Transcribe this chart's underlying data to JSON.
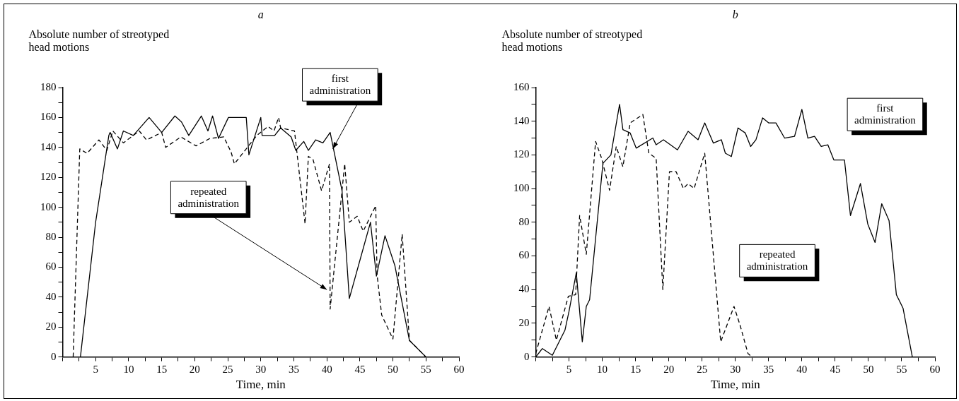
{
  "chart_data": [
    {
      "type": "line",
      "title": "a",
      "ylabel": "Absolute number of streotyped head motions",
      "xlabel": "Time, min",
      "xlim": [
        0,
        60
      ],
      "ylim": [
        0,
        180
      ],
      "xticks": [
        {
          "value": 0,
          "label": null
        },
        {
          "value": 2.5,
          "label": null
        },
        5,
        {
          "value": 7.5,
          "label": null
        },
        10,
        {
          "value": 12.5,
          "label": null
        },
        15,
        {
          "value": 17.5,
          "label": null
        },
        20,
        {
          "value": 22.5,
          "label": null
        },
        25,
        {
          "value": 27.5,
          "label": null
        },
        30,
        {
          "value": 32.5,
          "label": null
        },
        35,
        {
          "value": 37.5,
          "label": null
        },
        40,
        {
          "value": 42.5,
          "label": null
        },
        45,
        {
          "value": 47.5,
          "label": null
        },
        50,
        {
          "value": 52.5,
          "label": null
        },
        55,
        {
          "value": 57.5,
          "label": null
        },
        60
      ],
      "yticks": [
        0,
        {
          "value": 10,
          "label": null
        },
        20,
        {
          "value": 30,
          "label": null
        },
        40,
        {
          "value": 50,
          "label": null
        },
        60,
        {
          "value": 70,
          "label": null
        },
        80,
        {
          "value": 90,
          "label": null
        },
        100,
        {
          "value": 110,
          "label": null
        },
        120,
        {
          "value": 130,
          "label": null
        },
        140,
        {
          "value": 150,
          "label": null
        },
        160,
        {
          "value": 170,
          "label": null
        },
        180
      ],
      "grid": false,
      "legend": false,
      "marker": "none",
      "series": [
        {
          "color": "#000000",
          "line_style": "solid",
          "x": [
            2.7,
            5,
            7,
            7.2,
            8.3,
            9.2,
            10.7,
            13.1,
            15,
            17,
            18,
            19.1,
            21,
            22,
            22.7,
            23.6,
            25.1,
            26,
            27.8,
            28.2,
            30,
            30.2,
            32.1,
            33,
            34.6,
            35.3,
            36.5,
            37.2,
            38.3,
            39.4,
            40.5,
            42.3,
            43.4,
            46.6,
            47.5,
            48.8,
            50.3,
            52.5,
            55
          ],
          "values": [
            0,
            90,
            148,
            150,
            139,
            151,
            148,
            160,
            150,
            161,
            157,
            148,
            161,
            151,
            161,
            146,
            160,
            160,
            160,
            135,
            160,
            148,
            148,
            153,
            147,
            138,
            144,
            138,
            145,
            143,
            150,
            111,
            39,
            90,
            54,
            81,
            61,
            11,
            0
          ]
        },
        {
          "color": "#000000",
          "line_style": "dashed",
          "x": [
            1.6,
            2.6,
            3.7,
            5.5,
            6.7,
            7.6,
            9.2,
            11.6,
            12.7,
            15,
            15.6,
            17.9,
            20.2,
            22.3,
            24.4,
            25.5,
            26,
            29.4,
            31.1,
            32,
            32.7,
            33,
            35.1,
            36.7,
            37.2,
            37.9,
            39.2,
            40.4,
            40.5,
            42.7,
            43.4,
            44.6,
            45.5,
            47.4,
            47.6,
            48.3,
            50,
            51.4,
            52.5,
            55
          ],
          "values": [
            0,
            139,
            136,
            145,
            138,
            151,
            143,
            151,
            145,
            150,
            140,
            147,
            141,
            146,
            147,
            137,
            129,
            148,
            154,
            151,
            160,
            153,
            151,
            89,
            134,
            132,
            111,
            129,
            32,
            129,
            90,
            94,
            84,
            101,
            55,
            28,
            12,
            82,
            11,
            0
          ]
        }
      ],
      "annotations": [
        {
          "text": "first administration",
          "x": 40.9,
          "y": 139
        },
        {
          "text": "repeated administration",
          "x": 40,
          "y": 45
        }
      ]
    },
    {
      "type": "line",
      "title": "b",
      "ylabel": "Absolute number of streotyped head motions",
      "xlabel": "Time, min",
      "xlim": [
        0,
        60
      ],
      "ylim": [
        0,
        160
      ],
      "xticks": [
        {
          "value": 0,
          "label": null
        },
        {
          "value": 2.5,
          "label": null
        },
        5,
        {
          "value": 7.5,
          "label": null
        },
        10,
        {
          "value": 12.5,
          "label": null
        },
        15,
        {
          "value": 17.5,
          "label": null
        },
        20,
        {
          "value": 22.5,
          "label": null
        },
        25,
        {
          "value": 27.5,
          "label": null
        },
        30,
        {
          "value": 32.5,
          "label": null
        },
        35,
        {
          "value": 37.5,
          "label": null
        },
        40,
        {
          "value": 42.5,
          "label": null
        },
        45,
        {
          "value": 47.5,
          "label": null
        },
        50,
        {
          "value": 52.5,
          "label": null
        },
        55,
        {
          "value": 57.5,
          "label": null
        },
        60
      ],
      "yticks": [
        0,
        {
          "value": 10,
          "label": null
        },
        20,
        {
          "value": 30,
          "label": null
        },
        40,
        {
          "value": 50,
          "label": null
        },
        60,
        {
          "value": 70,
          "label": null
        },
        80,
        {
          "value": 90,
          "label": null
        },
        100,
        {
          "value": 110,
          "label": null
        },
        120,
        {
          "value": 130,
          "label": null
        },
        140,
        {
          "value": 150,
          "label": null
        },
        160
      ],
      "grid": false,
      "legend": false,
      "marker": "none",
      "series": [
        {
          "color": "#000000",
          "line_style": "solid",
          "x": [
            0,
            1,
            2.5,
            4.4,
            5,
            6.1,
            7,
            7.6,
            8.1,
            10.1,
            11.3,
            12.6,
            13.1,
            14.2,
            15.1,
            17.6,
            18.1,
            19.2,
            21.3,
            22.9,
            24.4,
            25.4,
            26.7,
            27.9,
            28.5,
            29.4,
            30.4,
            31.5,
            32.3,
            33.1,
            34.1,
            35,
            36.1,
            37.4,
            38.9,
            40,
            40.9,
            41.9,
            42.9,
            43.9,
            44.8,
            46.4,
            47.3,
            48.8,
            49.9,
            51,
            52,
            53.1,
            54.2,
            55.2,
            56.6
          ],
          "values": [
            0,
            5,
            1,
            16,
            27,
            50,
            9,
            30,
            34,
            115,
            120,
            150,
            135,
            133,
            124,
            130,
            126,
            129,
            123,
            134,
            129,
            139,
            127,
            129,
            121,
            119,
            136,
            133,
            125,
            129,
            142,
            139,
            139,
            130,
            131,
            147,
            130,
            131,
            125,
            126,
            117,
            117,
            84,
            103,
            79,
            68,
            91,
            81,
            37,
            29,
            0
          ]
        },
        {
          "color": "#000000",
          "line_style": "dashed",
          "x": [
            0,
            2,
            3.1,
            4.9,
            6,
            6.6,
            7.6,
            9,
            9.9,
            11.1,
            12.1,
            13.1,
            14.2,
            16.1,
            17,
            18.1,
            19.1,
            20.1,
            21.1,
            22.2,
            22.9,
            23.8,
            25.4,
            27.8,
            29.8,
            30.7,
            31.9,
            32.5
          ],
          "values": [
            2,
            30,
            10,
            36,
            37,
            84,
            61,
            128,
            118,
            99,
            125,
            113,
            139,
            144,
            121,
            118,
            40,
            110,
            110,
            100,
            103,
            100,
            121,
            9,
            30,
            19,
            2,
            0
          ]
        }
      ],
      "annotations": [
        "first administration",
        "repeated administration"
      ]
    }
  ]
}
